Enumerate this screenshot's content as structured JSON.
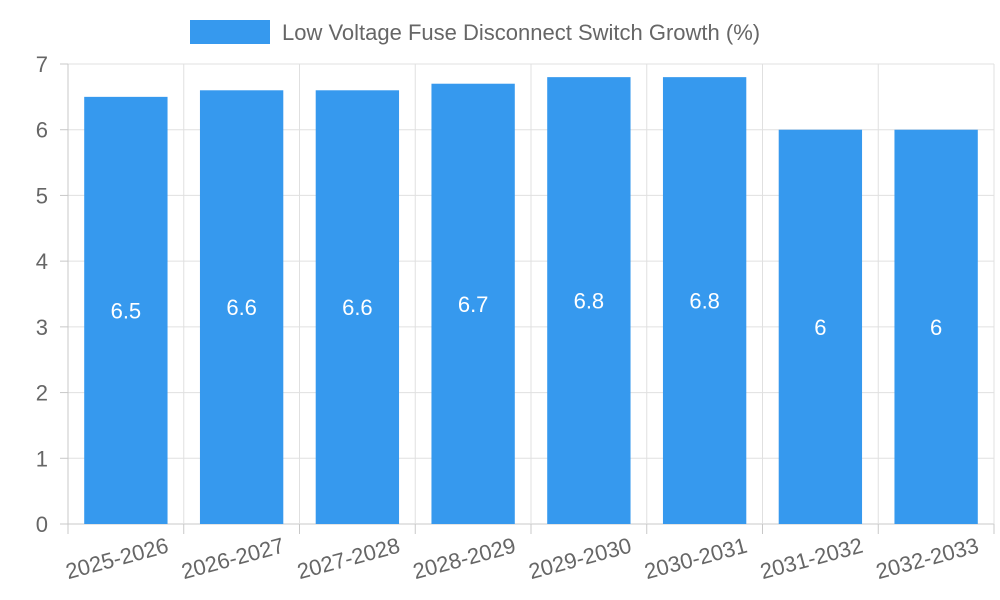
{
  "chart_data": {
    "type": "bar",
    "categories": [
      "2025-2026",
      "2026-2027",
      "2027-2028",
      "2028-2029",
      "2029-2030",
      "2030-2031",
      "2031-2032",
      "2032-2033"
    ],
    "series": [
      {
        "name": "Low Voltage Fuse Disconnect Switch Growth (%)",
        "values": [
          6.5,
          6.6,
          6.6,
          6.7,
          6.8,
          6.8,
          6,
          6
        ],
        "color": "#3699ee"
      }
    ],
    "title": "",
    "xlabel": "",
    "ylabel": "",
    "ylim": [
      0,
      7
    ],
    "yticks": [
      0,
      1,
      2,
      3,
      4,
      5,
      6,
      7
    ],
    "grid": true,
    "legend_position": "top-center",
    "data_labels": true
  }
}
